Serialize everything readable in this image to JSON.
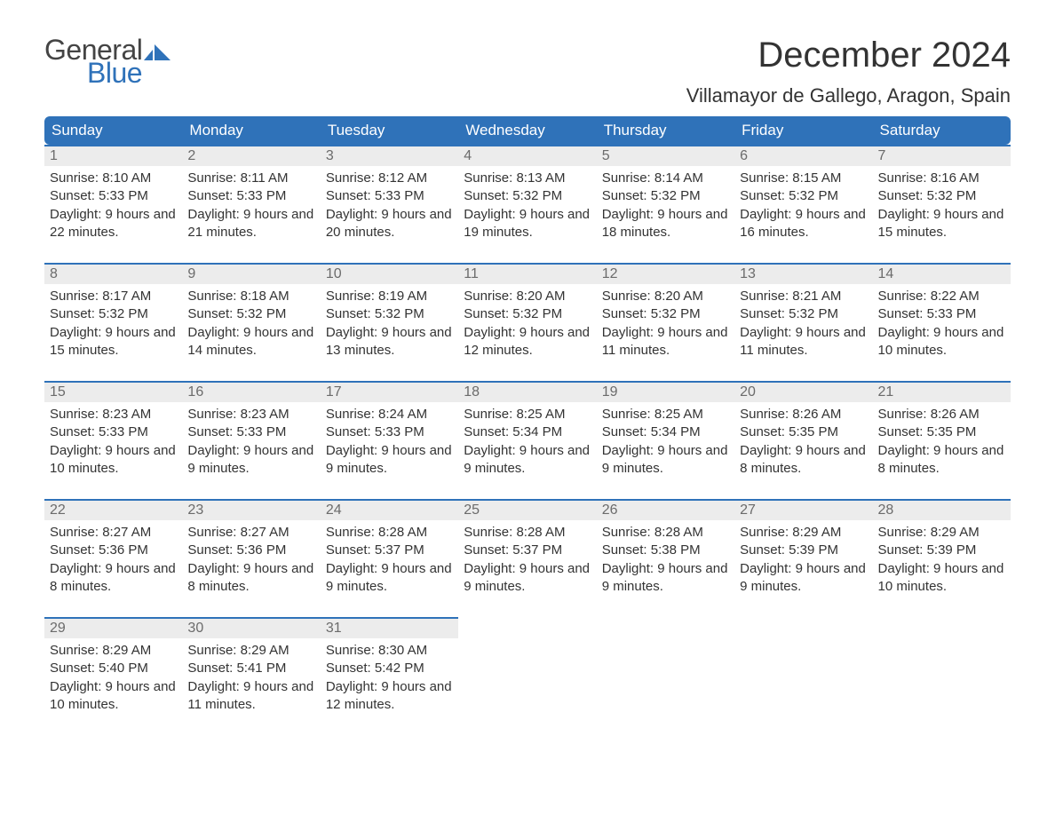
{
  "logo": {
    "word1": "General",
    "word2": "Blue",
    "flag_color": "#2f72b9",
    "word1_color": "#444444",
    "word2_color": "#2f72b9"
  },
  "title": "December 2024",
  "location": "Villamayor de Gallego, Aragon, Spain",
  "styling": {
    "header_bg": "#2f72b9",
    "header_text": "#ffffff",
    "daynum_bg": "#ececec",
    "daynum_color": "#6b6b6b",
    "cell_border_top": "#2f72b9",
    "body_text": "#333333",
    "page_bg": "#ffffff",
    "title_fontsize": 40,
    "location_fontsize": 22,
    "header_fontsize": 17,
    "body_fontsize": 15
  },
  "weekdays": [
    "Sunday",
    "Monday",
    "Tuesday",
    "Wednesday",
    "Thursday",
    "Friday",
    "Saturday"
  ],
  "weeks": [
    [
      {
        "n": "1",
        "sunrise": "Sunrise: 8:10 AM",
        "sunset": "Sunset: 5:33 PM",
        "daylight": "Daylight: 9 hours and 22 minutes."
      },
      {
        "n": "2",
        "sunrise": "Sunrise: 8:11 AM",
        "sunset": "Sunset: 5:33 PM",
        "daylight": "Daylight: 9 hours and 21 minutes."
      },
      {
        "n": "3",
        "sunrise": "Sunrise: 8:12 AM",
        "sunset": "Sunset: 5:33 PM",
        "daylight": "Daylight: 9 hours and 20 minutes."
      },
      {
        "n": "4",
        "sunrise": "Sunrise: 8:13 AM",
        "sunset": "Sunset: 5:32 PM",
        "daylight": "Daylight: 9 hours and 19 minutes."
      },
      {
        "n": "5",
        "sunrise": "Sunrise: 8:14 AM",
        "sunset": "Sunset: 5:32 PM",
        "daylight": "Daylight: 9 hours and 18 minutes."
      },
      {
        "n": "6",
        "sunrise": "Sunrise: 8:15 AM",
        "sunset": "Sunset: 5:32 PM",
        "daylight": "Daylight: 9 hours and 16 minutes."
      },
      {
        "n": "7",
        "sunrise": "Sunrise: 8:16 AM",
        "sunset": "Sunset: 5:32 PM",
        "daylight": "Daylight: 9 hours and 15 minutes."
      }
    ],
    [
      {
        "n": "8",
        "sunrise": "Sunrise: 8:17 AM",
        "sunset": "Sunset: 5:32 PM",
        "daylight": "Daylight: 9 hours and 15 minutes."
      },
      {
        "n": "9",
        "sunrise": "Sunrise: 8:18 AM",
        "sunset": "Sunset: 5:32 PM",
        "daylight": "Daylight: 9 hours and 14 minutes."
      },
      {
        "n": "10",
        "sunrise": "Sunrise: 8:19 AM",
        "sunset": "Sunset: 5:32 PM",
        "daylight": "Daylight: 9 hours and 13 minutes."
      },
      {
        "n": "11",
        "sunrise": "Sunrise: 8:20 AM",
        "sunset": "Sunset: 5:32 PM",
        "daylight": "Daylight: 9 hours and 12 minutes."
      },
      {
        "n": "12",
        "sunrise": "Sunrise: 8:20 AM",
        "sunset": "Sunset: 5:32 PM",
        "daylight": "Daylight: 9 hours and 11 minutes."
      },
      {
        "n": "13",
        "sunrise": "Sunrise: 8:21 AM",
        "sunset": "Sunset: 5:32 PM",
        "daylight": "Daylight: 9 hours and 11 minutes."
      },
      {
        "n": "14",
        "sunrise": "Sunrise: 8:22 AM",
        "sunset": "Sunset: 5:33 PM",
        "daylight": "Daylight: 9 hours and 10 minutes."
      }
    ],
    [
      {
        "n": "15",
        "sunrise": "Sunrise: 8:23 AM",
        "sunset": "Sunset: 5:33 PM",
        "daylight": "Daylight: 9 hours and 10 minutes."
      },
      {
        "n": "16",
        "sunrise": "Sunrise: 8:23 AM",
        "sunset": "Sunset: 5:33 PM",
        "daylight": "Daylight: 9 hours and 9 minutes."
      },
      {
        "n": "17",
        "sunrise": "Sunrise: 8:24 AM",
        "sunset": "Sunset: 5:33 PM",
        "daylight": "Daylight: 9 hours and 9 minutes."
      },
      {
        "n": "18",
        "sunrise": "Sunrise: 8:25 AM",
        "sunset": "Sunset: 5:34 PM",
        "daylight": "Daylight: 9 hours and 9 minutes."
      },
      {
        "n": "19",
        "sunrise": "Sunrise: 8:25 AM",
        "sunset": "Sunset: 5:34 PM",
        "daylight": "Daylight: 9 hours and 9 minutes."
      },
      {
        "n": "20",
        "sunrise": "Sunrise: 8:26 AM",
        "sunset": "Sunset: 5:35 PM",
        "daylight": "Daylight: 9 hours and 8 minutes."
      },
      {
        "n": "21",
        "sunrise": "Sunrise: 8:26 AM",
        "sunset": "Sunset: 5:35 PM",
        "daylight": "Daylight: 9 hours and 8 minutes."
      }
    ],
    [
      {
        "n": "22",
        "sunrise": "Sunrise: 8:27 AM",
        "sunset": "Sunset: 5:36 PM",
        "daylight": "Daylight: 9 hours and 8 minutes."
      },
      {
        "n": "23",
        "sunrise": "Sunrise: 8:27 AM",
        "sunset": "Sunset: 5:36 PM",
        "daylight": "Daylight: 9 hours and 8 minutes."
      },
      {
        "n": "24",
        "sunrise": "Sunrise: 8:28 AM",
        "sunset": "Sunset: 5:37 PM",
        "daylight": "Daylight: 9 hours and 9 minutes."
      },
      {
        "n": "25",
        "sunrise": "Sunrise: 8:28 AM",
        "sunset": "Sunset: 5:37 PM",
        "daylight": "Daylight: 9 hours and 9 minutes."
      },
      {
        "n": "26",
        "sunrise": "Sunrise: 8:28 AM",
        "sunset": "Sunset: 5:38 PM",
        "daylight": "Daylight: 9 hours and 9 minutes."
      },
      {
        "n": "27",
        "sunrise": "Sunrise: 8:29 AM",
        "sunset": "Sunset: 5:39 PM",
        "daylight": "Daylight: 9 hours and 9 minutes."
      },
      {
        "n": "28",
        "sunrise": "Sunrise: 8:29 AM",
        "sunset": "Sunset: 5:39 PM",
        "daylight": "Daylight: 9 hours and 10 minutes."
      }
    ],
    [
      {
        "n": "29",
        "sunrise": "Sunrise: 8:29 AM",
        "sunset": "Sunset: 5:40 PM",
        "daylight": "Daylight: 9 hours and 10 minutes."
      },
      {
        "n": "30",
        "sunrise": "Sunrise: 8:29 AM",
        "sunset": "Sunset: 5:41 PM",
        "daylight": "Daylight: 9 hours and 11 minutes."
      },
      {
        "n": "31",
        "sunrise": "Sunrise: 8:30 AM",
        "sunset": "Sunset: 5:42 PM",
        "daylight": "Daylight: 9 hours and 12 minutes."
      },
      null,
      null,
      null,
      null
    ]
  ]
}
